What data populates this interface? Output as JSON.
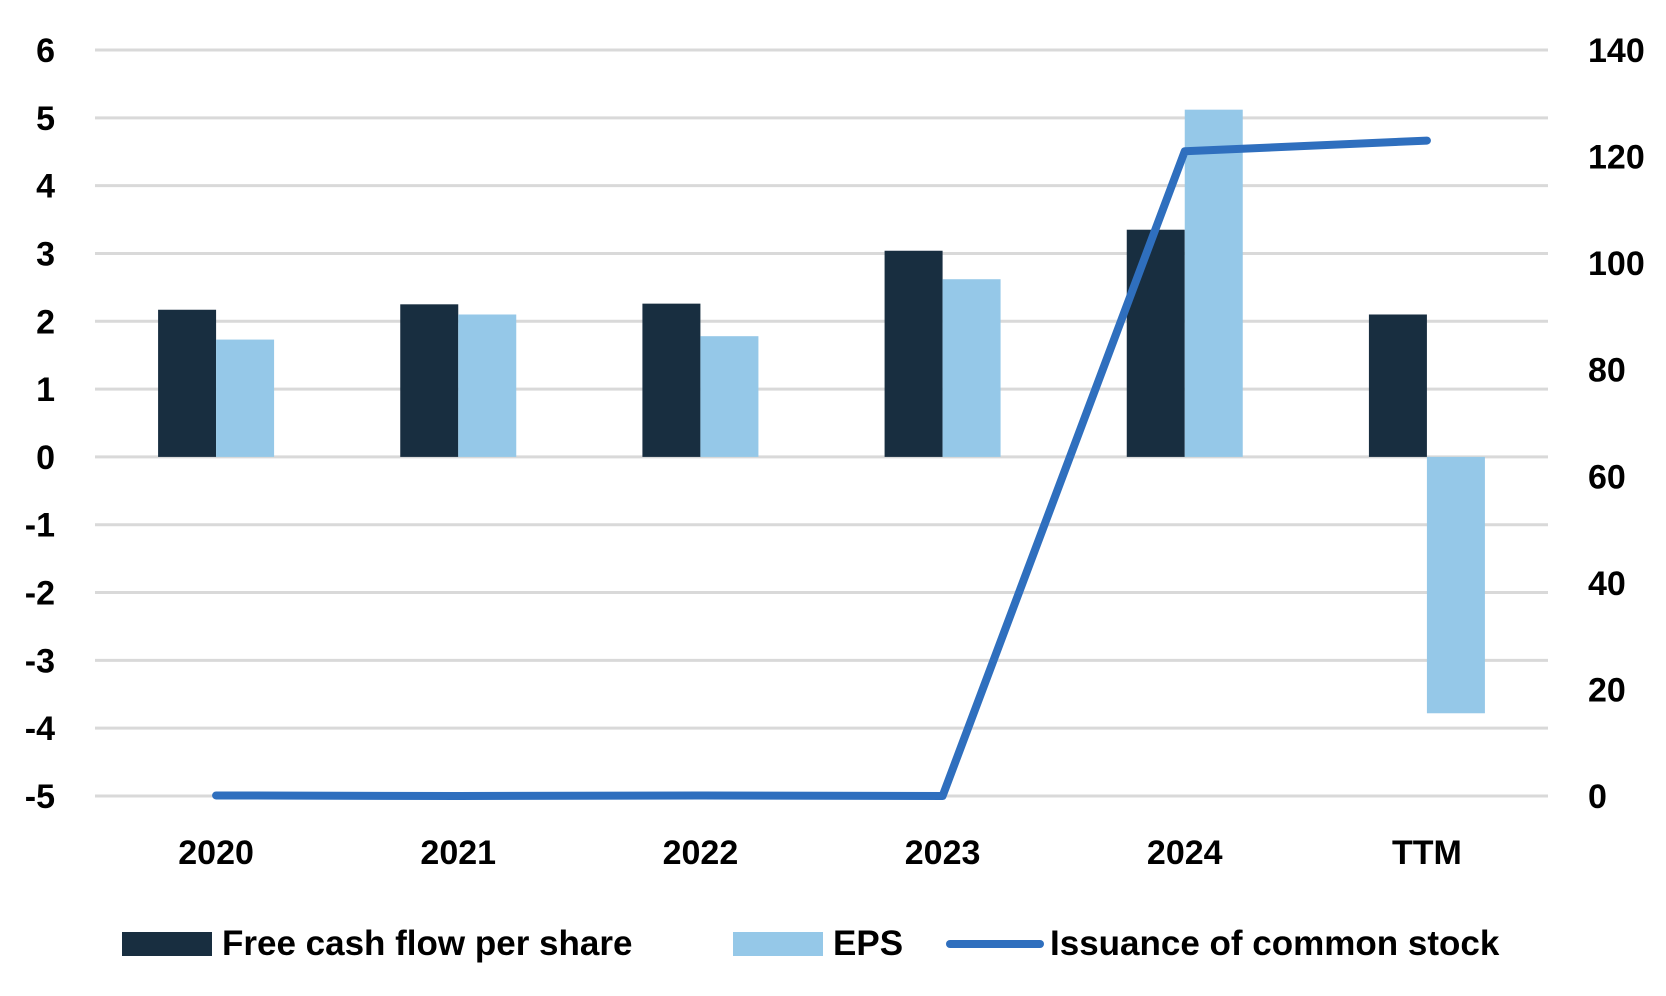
{
  "chart_data": {
    "type": "bar",
    "categories": [
      "2020",
      "2021",
      "2022",
      "2023",
      "2024",
      "TTM"
    ],
    "series": [
      {
        "name": "Free cash flow per share",
        "type": "bar",
        "axis": "left",
        "color": "#182e40",
        "values": [
          2.17,
          2.25,
          2.26,
          3.04,
          3.35,
          2.1
        ]
      },
      {
        "name": "EPS",
        "type": "bar",
        "axis": "left",
        "color": "#95c8e8",
        "values": [
          1.73,
          2.1,
          1.78,
          2.62,
          5.12,
          -3.78
        ]
      },
      {
        "name": "Issuance of common stock",
        "type": "line",
        "axis": "right",
        "color": "#2f6fbe",
        "values": [
          0.1,
          0,
          0.1,
          0,
          121,
          123
        ]
      }
    ],
    "y_left": {
      "min": -5,
      "max": 6,
      "ticks": [
        "6",
        "5",
        "4",
        "3",
        "2",
        "1",
        "0",
        "-1",
        "-2",
        "-3",
        "-4",
        "-5"
      ]
    },
    "y_right": {
      "min": 0,
      "max": 140,
      "ticks": [
        "140",
        "120",
        "100",
        "80",
        "60",
        "40",
        "20",
        "0"
      ]
    },
    "grid": true,
    "legend": "bottom",
    "title": "",
    "xlabel": "",
    "ylabel": ""
  }
}
